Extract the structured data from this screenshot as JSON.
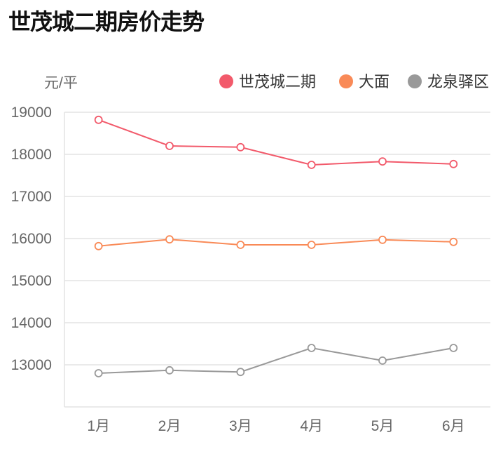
{
  "chart_data": {
    "type": "line",
    "title": "世茂城二期房价走势",
    "ylabel": "元/平",
    "xlabel": "",
    "categories": [
      "1月",
      "2月",
      "3月",
      "4月",
      "5月",
      "6月"
    ],
    "ylim": [
      12000,
      19000
    ],
    "yticks": [
      13000,
      14000,
      15000,
      16000,
      17000,
      18000,
      19000
    ],
    "grid": true,
    "legend": "top-right",
    "series": [
      {
        "name": "世茂城二期",
        "color": "#f25a6b",
        "values": [
          18820,
          18200,
          18170,
          17750,
          17830,
          17770
        ]
      },
      {
        "name": "大面",
        "color": "#f98a57",
        "values": [
          15820,
          15980,
          15850,
          15850,
          15970,
          15920
        ]
      },
      {
        "name": "龙泉驿区",
        "color": "#999999",
        "values": [
          12800,
          12870,
          12830,
          13400,
          13100,
          13400
        ]
      }
    ]
  }
}
